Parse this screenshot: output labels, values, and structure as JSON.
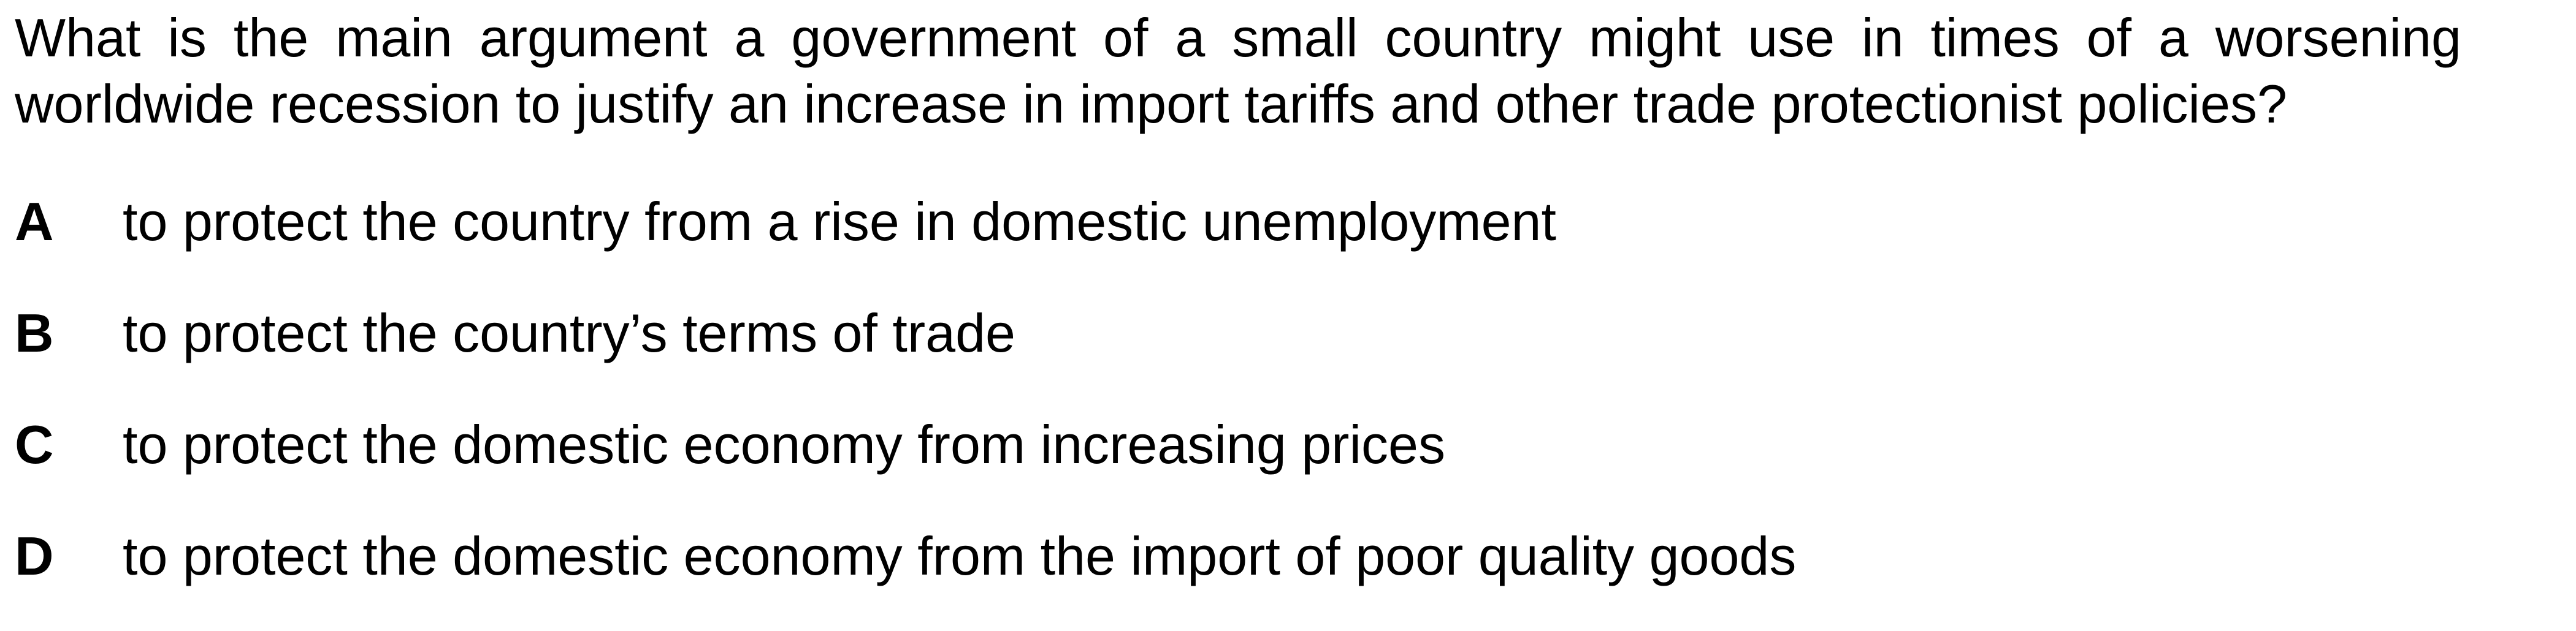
{
  "question": {
    "text": "What is the main argument a government of a small country might use in times of a worsening worldwide recession to justify an increase in import tariffs and other trade protectionist policies?"
  },
  "options": [
    {
      "letter": "A",
      "text": "to protect the country from a rise in domestic unemployment"
    },
    {
      "letter": "B",
      "text": "to protect the country’s terms of trade"
    },
    {
      "letter": "C",
      "text": "to protect the domestic economy from increasing prices"
    },
    {
      "letter": "D",
      "text": "to protect the domestic economy from the import of poor quality goods"
    }
  ]
}
